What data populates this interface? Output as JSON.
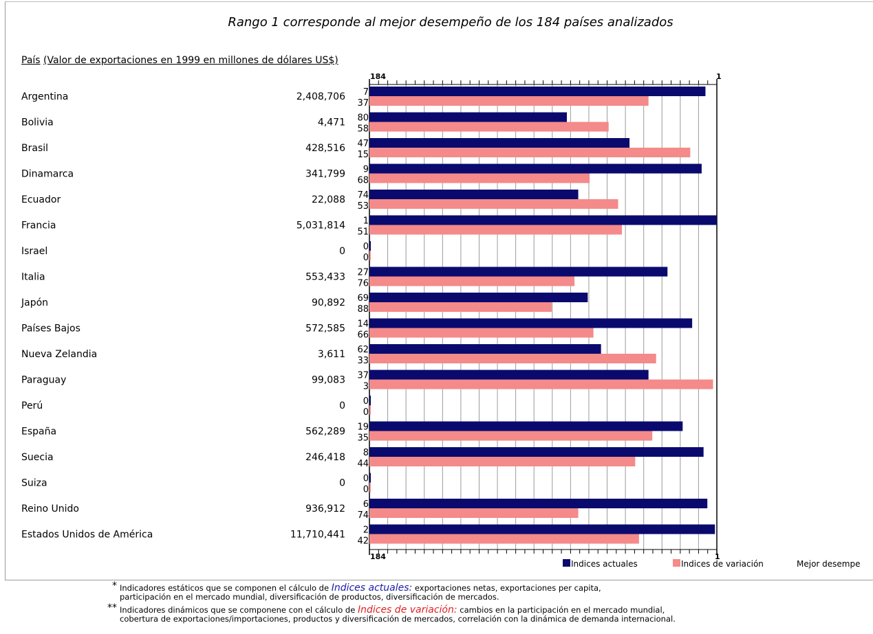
{
  "chart_data": {
    "type": "bar",
    "orientation": "horizontal",
    "title": "Rango 1 corresponde al mejor desempeño de los 184 países analizados",
    "header": {
      "country_label": "País",
      "value_label": "(Valor de exportaciones en 1999 en millones de dólares US$)"
    },
    "axis": {
      "left_label": "184",
      "right_label": "1",
      "range": [
        184,
        1
      ],
      "grid": true
    },
    "categories": [
      "Argentina",
      "Bolivia",
      "Brasil",
      "Dinamarca",
      "Ecuador",
      "Francia",
      "Israel",
      "Italia",
      "Japón",
      "Países Bajos",
      "Nueva Zelandia",
      "Paraguay",
      "Perú",
      "España",
      "Suecia",
      "Suiza",
      "Reino Unido",
      "Estados Unidos de América"
    ],
    "exports": [
      "2,408,706",
      "4,471",
      "428,516",
      "341,799",
      "22,088",
      "5,031,814",
      "0",
      "553,433",
      "90,892",
      "572,585",
      "3,611",
      "99,083",
      "0",
      "562,289",
      "246,418",
      "0",
      "936,912",
      "11,710,441"
    ],
    "series": [
      {
        "name": "Indices actuales",
        "color": "#0a0a6e",
        "values": [
          7,
          80,
          47,
          9,
          74,
          1,
          0,
          27,
          69,
          14,
          62,
          37,
          0,
          19,
          8,
          0,
          6,
          2
        ]
      },
      {
        "name": "Indices de variación",
        "color": "#f48a8a",
        "values": [
          37,
          58,
          15,
          68,
          53,
          51,
          0,
          76,
          88,
          66,
          33,
          3,
          0,
          35,
          44,
          0,
          74,
          42
        ]
      }
    ],
    "legend": {
      "position": "bottom-right",
      "extra_label": "Mejor desempe"
    }
  },
  "footnotes": [
    {
      "marker": "*",
      "lead": "Indicadores estáticos que se componen el cálculo de ",
      "highlight": "Indices actuales:",
      "rest": " exportaciones netas, exportaciones per capita,",
      "line2": "participación en el mercado mundial, diversificación de productos, diversificación de mercados."
    },
    {
      "marker": "**",
      "lead": "Indicadores dinámicos que se componene con el cálculo de ",
      "highlight": "Indices de variación:",
      "rest": " cambios en la participación en el mercado mundial,",
      "line2": "cobertura de exportaciones/importaciones, productos y diversificación de mercados, correlación con la dinámica de demanda internacional."
    }
  ]
}
